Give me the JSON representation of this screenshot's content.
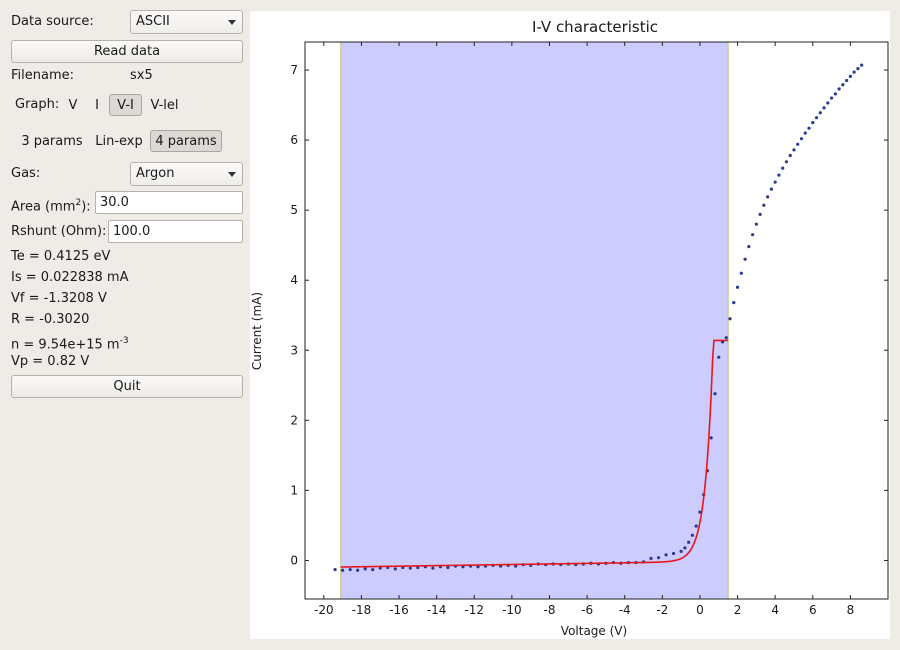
{
  "controls": {
    "data_source_label": "Data source:",
    "data_source_value": "ASCII",
    "read_data_label": "Read data",
    "filename_label": "Filename:",
    "filename_value": "sx5",
    "graph_label": "Graph:",
    "graph_options": [
      "V",
      "I",
      "V-I",
      "V-lel"
    ],
    "graph_selected": "V-I",
    "fit_options": [
      "3 params",
      "Lin-exp",
      "4 params"
    ],
    "fit_selected": "4 params",
    "gas_label": "Gas:",
    "gas_value": "Argon",
    "area_label_prefix": "Area (mm",
    "area_label_sup": "2",
    "area_label_suffix": "):",
    "area_value": "30.0",
    "rshunt_label": "Rshunt (Ohm):",
    "rshunt_value": "100.0",
    "quit_label": "Quit"
  },
  "results": {
    "te": "Te = 0.4125 eV",
    "is": "Is = 0.022838 mA",
    "vf": "Vf = -1.3208 V",
    "r": "R = -0.3020",
    "n_prefix": "n = 9.54e+15 m",
    "n_sup": "-3",
    "vp": "Vp = 0.82 V"
  },
  "colors": {
    "fit_region": "#ccccff",
    "data_points": "#2b3a8a",
    "fit_curve": "#e8161b",
    "region_edge": "#b9c47a"
  },
  "chart_data": {
    "type": "scatter",
    "title": "I-V characteristic",
    "xlabel": "Voltage (V)",
    "ylabel": "Current (mA)",
    "xlim": [
      -21,
      10
    ],
    "ylim": [
      -0.55,
      7.4
    ],
    "xticks": [
      -20,
      -18,
      -16,
      -14,
      -12,
      -10,
      -8,
      -6,
      -4,
      -2,
      0,
      2,
      4,
      6,
      8
    ],
    "yticks": [
      0,
      1,
      2,
      3,
      4,
      5,
      6,
      7
    ],
    "grid": false,
    "fit_region": [
      -19.1,
      1.5
    ],
    "fit": {
      "Vf": -1.3208,
      "Is": 0.022838,
      "Te": 0.4125,
      "R": -0.302
    },
    "series": [
      {
        "x": [
          -19.4,
          -19.0,
          -18.6,
          -18.2,
          -17.8,
          -17.4,
          -17.0,
          -16.6,
          -16.2,
          -15.8,
          -15.4,
          -15.0,
          -14.6,
          -14.2,
          -13.8,
          -13.4,
          -13.0,
          -12.6,
          -12.2,
          -11.8,
          -11.4,
          -11.0,
          -10.6,
          -10.2,
          -9.8,
          -9.4,
          -9.0,
          -8.6,
          -8.2,
          -7.8,
          -7.4,
          -7.0,
          -6.6,
          -6.2,
          -5.8,
          -5.4,
          -5.0,
          -4.6,
          -4.2,
          -3.8,
          -3.4,
          -3.0,
          -2.6,
          -2.2,
          -1.8,
          -1.4,
          -1.0,
          -0.8,
          -0.6,
          -0.4,
          -0.2,
          0.0,
          0.2,
          0.4,
          0.6,
          0.8,
          1.0,
          1.2,
          1.4,
          1.6,
          1.8,
          2.0,
          2.2,
          2.4,
          2.6,
          2.8,
          3.0,
          3.2,
          3.4,
          3.6,
          3.8,
          4.0,
          4.2,
          4.4,
          4.6,
          4.8,
          5.0,
          5.2,
          5.4,
          5.6,
          5.8,
          6.0,
          6.2,
          6.4,
          6.6,
          6.8,
          7.0,
          7.2,
          7.4,
          7.6,
          7.8,
          8.0,
          8.2,
          8.4,
          8.6
        ],
        "y": [
          -0.13,
          -0.14,
          -0.13,
          -0.14,
          -0.12,
          -0.13,
          -0.11,
          -0.1,
          -0.12,
          -0.1,
          -0.11,
          -0.1,
          -0.09,
          -0.11,
          -0.09,
          -0.1,
          -0.08,
          -0.09,
          -0.08,
          -0.09,
          -0.08,
          -0.07,
          -0.08,
          -0.07,
          -0.08,
          -0.06,
          -0.07,
          -0.05,
          -0.06,
          -0.05,
          -0.06,
          -0.05,
          -0.06,
          -0.05,
          -0.04,
          -0.05,
          -0.04,
          -0.03,
          -0.04,
          -0.03,
          -0.03,
          -0.02,
          0.03,
          0.04,
          0.08,
          0.1,
          0.13,
          0.18,
          0.26,
          0.36,
          0.49,
          0.69,
          0.94,
          1.28,
          1.75,
          2.38,
          2.9,
          3.12,
          3.18,
          3.45,
          3.68,
          3.9,
          4.1,
          4.3,
          4.48,
          4.65,
          4.8,
          4.94,
          5.07,
          5.19,
          5.3,
          5.4,
          5.5,
          5.6,
          5.69,
          5.78,
          5.86,
          5.94,
          6.02,
          6.1,
          6.17,
          6.25,
          6.32,
          6.39,
          6.46,
          6.53,
          6.6,
          6.66,
          6.73,
          6.79,
          6.85,
          6.91,
          6.97,
          7.02,
          7.07
        ]
      }
    ]
  }
}
